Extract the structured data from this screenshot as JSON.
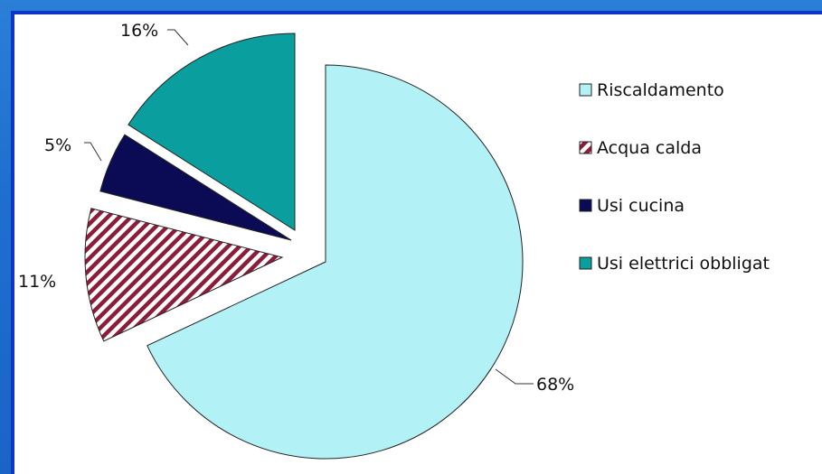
{
  "chart_data": {
    "type": "pie",
    "title": "",
    "exploded": true,
    "legend_position": "right",
    "slices": [
      {
        "label": "Riscaldamento",
        "value": 68,
        "display": "68%",
        "color": "#b2f1f5",
        "pattern": "solid"
      },
      {
        "label": "Acqua calda",
        "value": 11,
        "display": "11%",
        "color": "#8b1c3a",
        "pattern": "diagonal-hatch"
      },
      {
        "label": "Usi cucina",
        "value": 5,
        "display": "5%",
        "color": "#0a0a55",
        "pattern": "solid"
      },
      {
        "label": "Usi elettrici obbligat",
        "value": 16,
        "display": "16%",
        "color": "#0b9e9e",
        "pattern": "solid"
      }
    ]
  },
  "colors": {
    "background": "#1f6fcf",
    "frame_border": "#0d35c9",
    "plot_background": "#ffffff"
  }
}
